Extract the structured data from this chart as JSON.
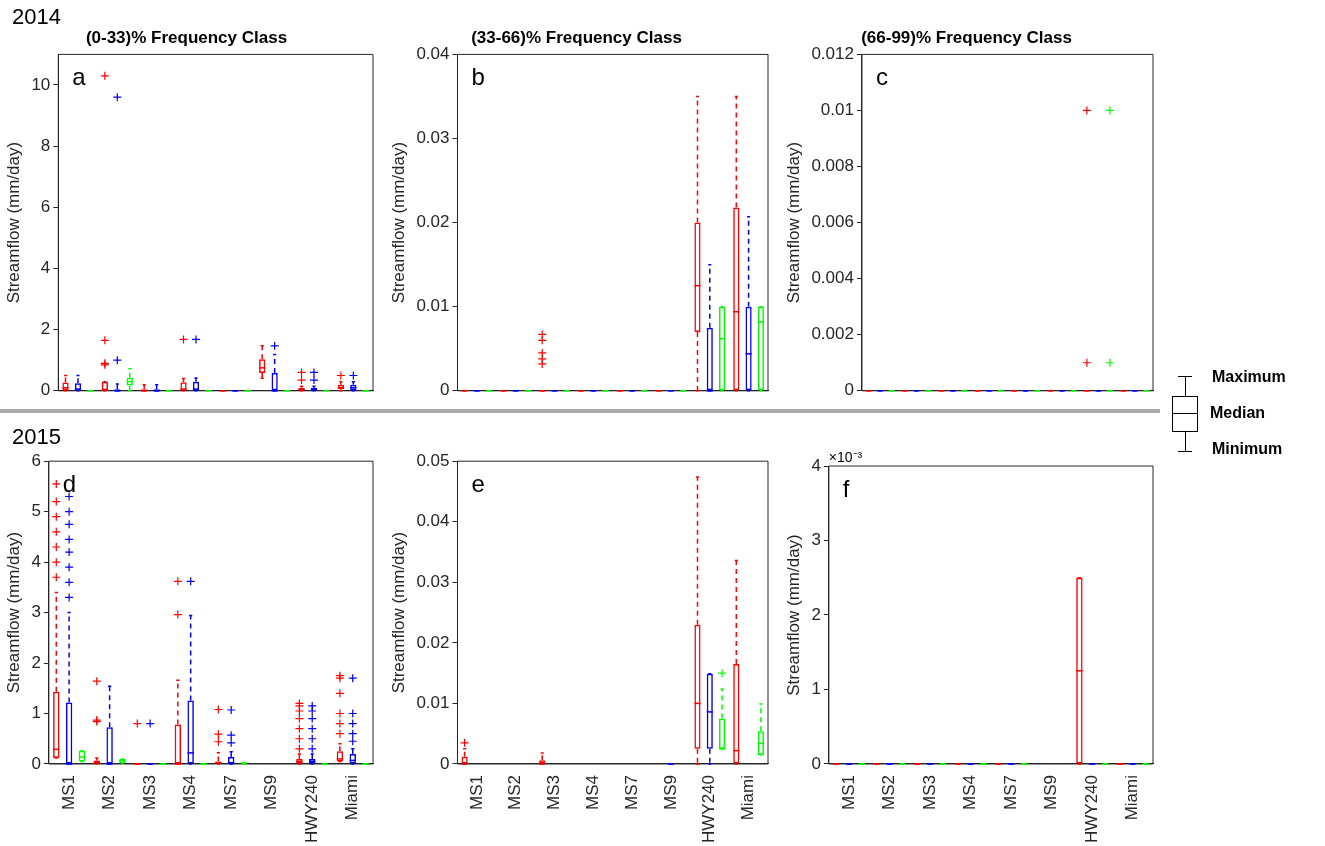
{
  "chart_data": [
    {
      "type": "box",
      "title": "(0-33)% Frequency Class",
      "ylabel": "Streamflow (mm/day)",
      "categories": [
        null,
        null,
        null,
        null,
        null,
        null,
        null,
        null
      ],
      "ylim": [
        0,
        11
      ],
      "yticks": [
        0,
        2,
        4,
        6,
        8,
        10
      ],
      "tick_labels": "y",
      "annotations": [
        "a",
        "2014"
      ],
      "series": [
        {
          "color": "#ff0000",
          "boxes": [
            {
              "low": 0,
              "q1": 0,
              "median": 0.1,
              "q3": 0.27,
              "high": 0.5
            },
            {
              "low": 0,
              "q1": 0,
              "median": 0.02,
              "q3": 0.3,
              "high": 0.3,
              "outliers": [
                0.85,
                0.9,
                1.65,
                10.3
              ]
            },
            {
              "low": 0,
              "q1": 0,
              "median": 0,
              "q3": 0.05,
              "high": 0.2
            },
            {
              "low": 0,
              "q1": 0,
              "median": 0.05,
              "q3": 0.28,
              "high": 0.4,
              "outliers": [
                1.68
              ]
            },
            {
              "low": 0,
              "q1": 0,
              "median": 0,
              "q3": 0,
              "high": 0
            },
            {
              "low": 0.41,
              "q1": 0.58,
              "median": 0.75,
              "q3": 1.03,
              "high": 1.47
            },
            {
              "low": 0,
              "q1": 0,
              "median": 0.05,
              "q3": 0.1,
              "high": 0.15,
              "outliers": [
                0.35,
                0.6
              ]
            },
            {
              "low": 0,
              "q1": 0.05,
              "median": 0.1,
              "q3": 0.2,
              "high": 0.3,
              "outliers": [
                0.5
              ]
            }
          ]
        },
        {
          "color": "#0000ff",
          "boxes": [
            {
              "low": 0,
              "q1": 0,
              "median": 0.05,
              "q3": 0.25,
              "high": 0.5
            },
            {
              "low": 0,
              "q1": 0,
              "median": 0,
              "q3": 0.05,
              "high": 0.22,
              "outliers": [
                1,
                9.6
              ]
            },
            {
              "low": 0,
              "q1": 0,
              "median": 0,
              "q3": 0.05,
              "high": 0.2
            },
            {
              "low": 0,
              "q1": 0,
              "median": 0.05,
              "q3": 0.3,
              "high": 0.42,
              "outliers": [
                1.68
              ]
            },
            {
              "low": 0,
              "q1": 0,
              "median": 0,
              "q3": 0,
              "high": 0
            },
            {
              "low": 0,
              "q1": 0,
              "median": 0,
              "q3": 0.58,
              "high": 1.19,
              "outliers": [
                1.47
              ]
            },
            {
              "low": 0,
              "q1": 0,
              "median": 0.05,
              "q3": 0.1,
              "high": 0.15,
              "outliers": [
                0.35,
                0.6
              ]
            },
            {
              "low": 0,
              "q1": 0,
              "median": 0.1,
              "q3": 0.2,
              "high": 0.3,
              "outliers": [
                0.5
              ]
            }
          ]
        },
        {
          "color": "#00ff00",
          "boxes": [
            {
              "low": 0,
              "q1": 0,
              "median": 0,
              "q3": 0,
              "high": 0
            },
            {
              "low": 0,
              "q1": 0.17,
              "median": 0.3,
              "q3": 0.43,
              "high": 0.72
            },
            {
              "low": 0,
              "q1": 0,
              "median": 0,
              "q3": 0,
              "high": 0
            },
            {
              "low": 0,
              "q1": 0,
              "median": 0,
              "q3": 0,
              "high": 0
            },
            {
              "low": 0,
              "q1": 0,
              "median": 0,
              "q3": 0,
              "high": 0
            },
            {
              "low": 0,
              "q1": 0,
              "median": 0,
              "q3": 0,
              "high": 0
            },
            {
              "low": 0,
              "q1": 0,
              "median": 0,
              "q3": 0,
              "high": 0
            },
            {
              "low": 0,
              "q1": 0,
              "median": 0,
              "q3": 0,
              "high": 0
            }
          ]
        }
      ]
    },
    {
      "type": "box",
      "title": "(33-66)% Frequency Class",
      "ylabel": "Streamflow (mm/day)",
      "categories": [
        null,
        null,
        null,
        null,
        null,
        null,
        null,
        null
      ],
      "ylim": [
        0,
        0.04
      ],
      "yticks": [
        0,
        0.01,
        0.02,
        0.03,
        0.04
      ],
      "tick_labels": "y",
      "annotations": [
        "b"
      ],
      "series": [
        {
          "color": "#ff0000",
          "boxes": [
            {
              "low": 0,
              "q1": 0,
              "median": 0,
              "q3": 0,
              "high": 0
            },
            {
              "low": 0,
              "q1": 0,
              "median": 0,
              "q3": 0,
              "high": 0
            },
            {
              "low": 0,
              "q1": 0,
              "median": 0,
              "q3": 0,
              "high": 0,
              "outliers": [
                0.0032,
                0.0038,
                0.0045,
                0.006,
                0.0067
              ]
            },
            {
              "low": 0,
              "q1": 0,
              "median": 0,
              "q3": 0,
              "high": 0
            },
            {
              "low": 0,
              "q1": 0,
              "median": 0,
              "q3": 0,
              "high": 0
            },
            {
              "low": 0,
              "q1": 0,
              "median": 0,
              "q3": 0,
              "high": 0
            },
            {
              "low": 0,
              "q1": 0.007,
              "median": 0.0125,
              "q3": 0.02,
              "high": 0.035
            },
            {
              "low": 0,
              "q1": 0,
              "median": 0.0094,
              "q3": 0.0218,
              "high": 0.035
            }
          ]
        },
        {
          "color": "#0000ff",
          "boxes": [
            {
              "low": 0,
              "q1": 0,
              "median": 0,
              "q3": 0,
              "high": 0
            },
            {
              "low": 0,
              "q1": 0,
              "median": 0,
              "q3": 0,
              "high": 0
            },
            {
              "low": 0,
              "q1": 0,
              "median": 0,
              "q3": 0,
              "high": 0
            },
            {
              "low": 0,
              "q1": 0,
              "median": 0,
              "q3": 0,
              "high": 0
            },
            {
              "low": 0,
              "q1": 0,
              "median": 0,
              "q3": 0,
              "high": 0
            },
            {
              "low": 0,
              "q1": 0,
              "median": 0,
              "q3": 0,
              "high": 0
            },
            {
              "low": 0,
              "q1": 0,
              "median": 0,
              "q3": 0.0075,
              "high": 0.015
            },
            {
              "low": 0,
              "q1": 0,
              "median": 0.0044,
              "q3": 0.01,
              "high": 0.0207
            }
          ]
        },
        {
          "color": "#00ff00",
          "boxes": [
            {
              "low": 0,
              "q1": 0,
              "median": 0,
              "q3": 0,
              "high": 0
            },
            {
              "low": 0,
              "q1": 0,
              "median": 0,
              "q3": 0,
              "high": 0
            },
            {
              "low": 0,
              "q1": 0,
              "median": 0,
              "q3": 0,
              "high": 0
            },
            {
              "low": 0,
              "q1": 0,
              "median": 0,
              "q3": 0,
              "high": 0
            },
            {
              "low": 0,
              "q1": 0,
              "median": 0,
              "q3": 0,
              "high": 0
            },
            {
              "low": 0,
              "q1": 0,
              "median": 0,
              "q3": 0,
              "high": 0
            },
            {
              "low": 0,
              "q1": 0,
              "median": 0.0062,
              "q3": 0.01,
              "high": 0.01
            },
            {
              "low": 0,
              "q1": 0,
              "median": 0.0082,
              "q3": 0.01,
              "high": 0.01
            }
          ]
        }
      ]
    },
    {
      "type": "box",
      "title": "(66-99)% Frequency Class",
      "ylabel": "Streamflow (mm/day)",
      "categories": [
        null,
        null,
        null,
        null,
        null,
        null,
        null,
        null
      ],
      "ylim": [
        0,
        0.012
      ],
      "yticks": [
        0,
        0.002,
        0.004,
        0.006,
        0.008,
        0.01,
        0.012
      ],
      "tick_labels": "y",
      "annotations": [
        "c",
        "Maximum",
        "Median",
        "Minimum"
      ],
      "series": [
        {
          "color": "#ff0000",
          "boxes": [
            {
              "low": 0,
              "q1": 0,
              "median": 0,
              "q3": 0,
              "high": 0
            },
            {
              "low": 0,
              "q1": 0,
              "median": 0,
              "q3": 0,
              "high": 0
            },
            {
              "low": 0,
              "q1": 0,
              "median": 0,
              "q3": 0,
              "high": 0
            },
            {
              "low": 0,
              "q1": 0,
              "median": 0,
              "q3": 0,
              "high": 0
            },
            {
              "low": 0,
              "q1": 0,
              "median": 0,
              "q3": 0,
              "high": 0
            },
            {
              "low": 0,
              "q1": 0,
              "median": 0,
              "q3": 0,
              "high": 0
            },
            {
              "low": 0,
              "q1": 0,
              "median": 0,
              "q3": 0,
              "high": 0,
              "outliers": [
                0.001,
                0.01
              ]
            },
            {
              "low": 0,
              "q1": 0,
              "median": 0,
              "q3": 0,
              "high": 0
            }
          ]
        },
        {
          "color": "#0000ff",
          "boxes": [
            {
              "low": 0,
              "q1": 0,
              "median": 0,
              "q3": 0,
              "high": 0
            },
            {
              "low": 0,
              "q1": 0,
              "median": 0,
              "q3": 0,
              "high": 0
            },
            {
              "low": 0,
              "q1": 0,
              "median": 0,
              "q3": 0,
              "high": 0
            },
            {
              "low": 0,
              "q1": 0,
              "median": 0,
              "q3": 0,
              "high": 0
            },
            {
              "low": 0,
              "q1": 0,
              "median": 0,
              "q3": 0,
              "high": 0
            },
            {
              "low": 0,
              "q1": 0,
              "median": 0,
              "q3": 0,
              "high": 0
            },
            {
              "low": 0,
              "q1": 0,
              "median": 0,
              "q3": 0,
              "high": 0
            },
            {
              "low": 0,
              "q1": 0,
              "median": 0,
              "q3": 0,
              "high": 0
            }
          ]
        },
        {
          "color": "#00ff00",
          "boxes": [
            {
              "low": 0,
              "q1": 0,
              "median": 0,
              "q3": 0,
              "high": 0
            },
            {
              "low": 0,
              "q1": 0,
              "median": 0,
              "q3": 0,
              "high": 0
            },
            {
              "low": 0,
              "q1": 0,
              "median": 0,
              "q3": 0,
              "high": 0
            },
            {
              "low": 0,
              "q1": 0,
              "median": 0,
              "q3": 0,
              "high": 0
            },
            {
              "low": 0,
              "q1": 0,
              "median": 0,
              "q3": 0,
              "high": 0
            },
            {
              "low": 0,
              "q1": 0,
              "median": 0,
              "q3": 0,
              "high": 0
            },
            {
              "low": 0,
              "q1": 0,
              "median": 0,
              "q3": 0,
              "high": 0,
              "outliers": [
                0.001,
                0.01
              ]
            },
            {
              "low": 0,
              "q1": 0,
              "median": 0,
              "q3": 0,
              "high": 0
            }
          ]
        }
      ]
    },
    {
      "type": "box",
      "ylabel": "Streamflow (mm/day)",
      "categories": [
        "MS1",
        "MS2",
        "MS3",
        "MS4",
        "MS7",
        "MS9",
        "HWY240",
        "Miami"
      ],
      "ylim": [
        0,
        6
      ],
      "yticks": [
        0,
        1,
        2,
        3,
        4,
        5,
        6
      ],
      "annotations": [
        "d",
        "2015"
      ],
      "series": [
        {
          "color": "#ff0000",
          "boxes": [
            {
              "low": 0.12,
              "q1": 0.12,
              "median": 0.29,
              "q3": 1.43,
              "high": 3.4,
              "outliers": [
                3.7,
                4,
                4.3,
                4.6,
                4.9,
                5.2,
                5.55
              ]
            },
            {
              "low": 0,
              "q1": 0,
              "median": 0.02,
              "q3": 0.07,
              "high": 0.12,
              "outliers": [
                0.84,
                0.87,
                1.64
              ]
            },
            {
              "low": 0,
              "q1": 0,
              "median": 0,
              "q3": 0,
              "high": 0,
              "outliers": [
                0.8
              ]
            },
            {
              "low": 0,
              "q1": 0,
              "median": 0,
              "q3": 0.78,
              "high": 1.66,
              "outliers": [
                2.96,
                3.62
              ]
            },
            {
              "low": 0,
              "q1": 0,
              "median": 0.02,
              "q3": 0.05,
              "high": 0.22,
              "outliers": [
                0.44,
                0.59,
                1.08
              ]
            },
            null,
            {
              "low": 0,
              "q1": 0,
              "median": 0.05,
              "q3": 0.1,
              "high": 0.2,
              "outliers": [
                0.3,
                0.5,
                0.7,
                0.9,
                1.05,
                1.15,
                1.2
              ]
            },
            {
              "low": 0.05,
              "q1": 0.05,
              "median": 0.1,
              "q3": 0.25,
              "high": 0.4,
              "outliers": [
                0.6,
                0.8,
                1,
                1.4,
                1.7,
                1.75
              ]
            }
          ]
        },
        {
          "color": "#0000ff",
          "boxes": [
            {
              "low": 0,
              "q1": 0,
              "median": 0,
              "q3": 1.22,
              "high": 3,
              "outliers": [
                3.3,
                3.6,
                3.9,
                4.2,
                4.45,
                4.75,
                5,
                5.3
              ]
            },
            {
              "low": 0,
              "q1": 0,
              "median": 0,
              "q3": 0.73,
              "high": 1.54
            },
            {
              "low": 0,
              "q1": 0,
              "median": 0,
              "q3": 0,
              "high": 0,
              "outliers": [
                0.8
              ]
            },
            {
              "low": 0,
              "q1": 0,
              "median": 0.22,
              "q3": 1.26,
              "high": 2.94,
              "outliers": [
                3.62
              ]
            },
            {
              "low": 0,
              "q1": 0,
              "median": 0.02,
              "q3": 0.14,
              "high": 0.24,
              "outliers": [
                0.42,
                0.57,
                1.07
              ]
            },
            null,
            {
              "low": 0,
              "q1": 0,
              "median": 0.05,
              "q3": 0.1,
              "high": 0.2,
              "outliers": [
                0.3,
                0.5,
                0.7,
                0.9,
                1.05,
                1.15
              ]
            },
            {
              "low": 0,
              "q1": 0,
              "median": 0.07,
              "q3": 0.2,
              "high": 0.3,
              "outliers": [
                0.45,
                0.6,
                0.8,
                1,
                1.7
              ]
            }
          ]
        },
        {
          "color": "#00ff00",
          "boxes": [
            {
              "low": 0.05,
              "q1": 0.05,
              "median": 0.14,
              "q3": 0.26,
              "high": 0.26
            },
            {
              "low": 0.02,
              "q1": 0.02,
              "median": 0.07,
              "q3": 0.1,
              "high": 0.1
            },
            {
              "low": 0,
              "q1": 0,
              "median": 0,
              "q3": 0,
              "high": 0
            },
            {
              "low": 0,
              "q1": 0,
              "median": 0,
              "q3": 0,
              "high": 0
            },
            {
              "low": 0,
              "q1": 0,
              "median": 0.02,
              "q3": 0.02,
              "high": 0.02
            },
            null,
            {
              "low": 0,
              "q1": 0,
              "median": 0,
              "q3": 0,
              "high": 0
            },
            {
              "low": 0,
              "q1": 0,
              "median": 0,
              "q3": 0,
              "high": 0
            }
          ]
        }
      ]
    },
    {
      "type": "box",
      "ylabel": "Streamflow (mm/day)",
      "categories": [
        "MS1",
        "MS2",
        "MS3",
        "MS4",
        "MS7",
        "MS9",
        "HWY240",
        "Miami"
      ],
      "ylim": [
        0,
        0.05
      ],
      "yticks": [
        0,
        0.01,
        0.02,
        0.03,
        0.04,
        0.05
      ],
      "annotations": [
        "e"
      ],
      "series": [
        {
          "color": "#ff0000",
          "boxes": [
            {
              "low": 0,
              "q1": 0,
              "median": 0,
              "q3": 0.0012,
              "high": 0.0025,
              "outliers": [
                0.0035
              ]
            },
            null,
            {
              "low": 0,
              "q1": 0,
              "median": 0,
              "q3": 0.0006,
              "high": 0.0018
            },
            null,
            null,
            null,
            {
              "low": 0,
              "q1": 0.0025,
              "median": 0.01,
              "q3": 0.023,
              "high": 0.0474
            },
            {
              "low": 0,
              "q1": 0,
              "median": 0.0022,
              "q3": 0.0165,
              "high": 0.0336
            }
          ]
        },
        {
          "color": "#0000ff",
          "boxes": [
            null,
            null,
            null,
            null,
            null,
            {
              "low": 0,
              "q1": 0,
              "median": 0,
              "q3": 0,
              "high": 0
            },
            {
              "low": 0,
              "q1": 0.0025,
              "median": 0.0086,
              "q3": 0.0149,
              "high": 0.0149
            },
            null
          ]
        },
        {
          "color": "#00ff00",
          "boxes": [
            null,
            null,
            null,
            null,
            null,
            null,
            {
              "low": 0.0025,
              "q1": 0.0025,
              "median": 0.0025,
              "q3": 0.0075,
              "high": 0.0124,
              "outliers": [
                0.015
              ]
            },
            {
              "low": 0.0015,
              "q1": 0.0015,
              "median": 0.0034,
              "q3": 0.0054,
              "high": 0.0099
            }
          ]
        }
      ]
    },
    {
      "type": "box",
      "ylabel": "Streamflow (mm/day)",
      "categories": [
        "MS1",
        "MS2",
        "MS3",
        "MS4",
        "MS7",
        "MS9",
        "HWY240",
        "Miami"
      ],
      "ylim": [
        0,
        4
      ],
      "yticks": [
        0,
        1,
        2,
        3,
        4
      ],
      "annotations": [
        "f",
        "×10⁻³"
      ],
      "series": [
        {
          "color": "#ff0000",
          "boxes": [
            {
              "low": 0,
              "q1": 0,
              "median": 0,
              "q3": 0,
              "high": 0
            },
            {
              "low": 0,
              "q1": 0,
              "median": 0,
              "q3": 0,
              "high": 0
            },
            {
              "low": 0,
              "q1": 0,
              "median": 0,
              "q3": 0,
              "high": 0
            },
            {
              "low": 0,
              "q1": 0,
              "median": 0,
              "q3": 0,
              "high": 0
            },
            {
              "low": 0,
              "q1": 0,
              "median": 0,
              "q3": 0,
              "high": 0
            },
            null,
            {
              "low": 0,
              "q1": 0,
              "median": 1.25,
              "q3": 2.5,
              "high": 2.5
            },
            {
              "low": 0,
              "q1": 0,
              "median": 0,
              "q3": 0,
              "high": 0
            }
          ]
        },
        {
          "color": "#0000ff",
          "boxes": [
            {
              "low": 0,
              "q1": 0,
              "median": 0,
              "q3": 0,
              "high": 0
            },
            {
              "low": 0,
              "q1": 0,
              "median": 0,
              "q3": 0,
              "high": 0
            },
            {
              "low": 0,
              "q1": 0,
              "median": 0,
              "q3": 0,
              "high": 0
            },
            {
              "low": 0,
              "q1": 0,
              "median": 0,
              "q3": 0,
              "high": 0
            },
            {
              "low": 0,
              "q1": 0,
              "median": 0,
              "q3": 0,
              "high": 0
            },
            null,
            {
              "low": 0,
              "q1": 0,
              "median": 0,
              "q3": 0,
              "high": 0
            },
            {
              "low": 0,
              "q1": 0,
              "median": 0,
              "q3": 0,
              "high": 0
            }
          ]
        },
        {
          "color": "#00ff00",
          "boxes": [
            {
              "low": 0,
              "q1": 0,
              "median": 0,
              "q3": 0,
              "high": 0
            },
            {
              "low": 0,
              "q1": 0,
              "median": 0,
              "q3": 0,
              "high": 0
            },
            {
              "low": 0,
              "q1": 0,
              "median": 0,
              "q3": 0,
              "high": 0
            },
            {
              "low": 0,
              "q1": 0,
              "median": 0,
              "q3": 0,
              "high": 0
            },
            {
              "low": 0,
              "q1": 0,
              "median": 0,
              "q3": 0,
              "high": 0
            },
            null,
            {
              "low": 0,
              "q1": 0,
              "median": 0,
              "q3": 0,
              "high": 0
            },
            {
              "low": 0,
              "q1": 0,
              "median": 0,
              "q3": 0,
              "high": 0
            }
          ]
        }
      ]
    }
  ]
}
